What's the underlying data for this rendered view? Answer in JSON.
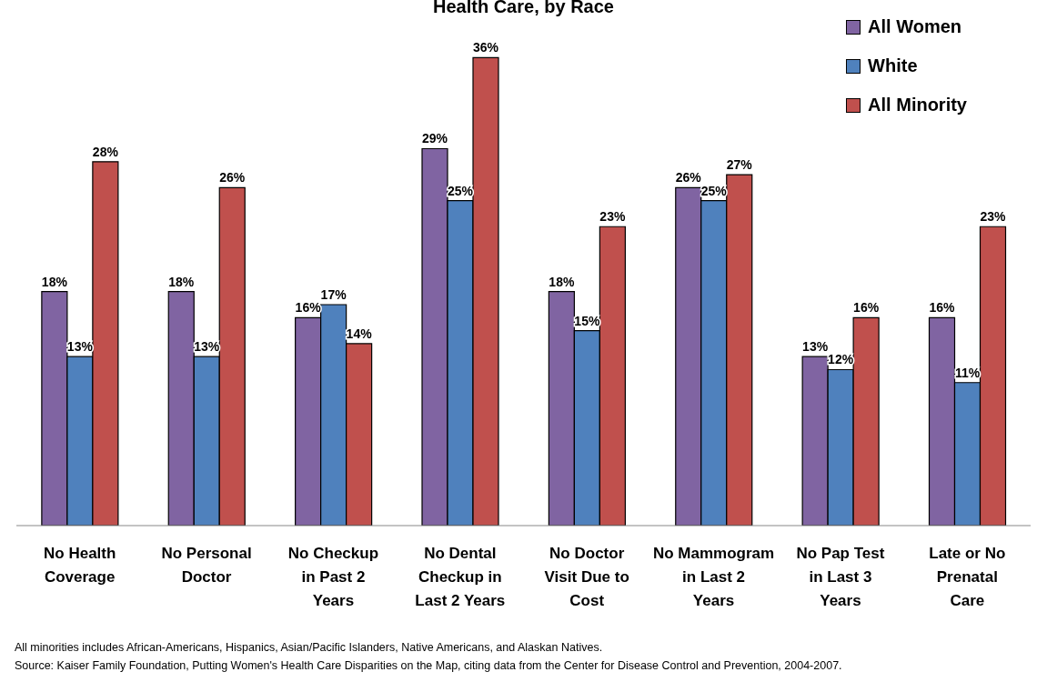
{
  "chart_data": {
    "type": "bar",
    "title": "Health Care, by Race",
    "categories": [
      "No Health Coverage",
      "No Personal Doctor",
      "No Checkup in Past 2 Years",
      "No Dental Checkup in Last 2 Years",
      "No Doctor Visit Due to Cost",
      "No Mammogram in Last 2 Years",
      "No Pap Test in Last 3 Years",
      "Late or No Prenatal Care"
    ],
    "series": [
      {
        "name": "All Women",
        "color": "#8064a2",
        "values": [
          18,
          18,
          16,
          29,
          18,
          26,
          13,
          16
        ],
        "value_labels": [
          "18%",
          "18%",
          "16%",
          "29%",
          "18%",
          "26%",
          "13%",
          "16%"
        ]
      },
      {
        "name": "White",
        "color": "#4f81bd",
        "values": [
          13,
          13,
          17,
          25,
          15,
          25,
          12,
          11
        ],
        "value_labels": [
          "13%",
          "13%",
          "17%",
          "25%",
          "15%",
          "25%",
          "12%",
          "11%"
        ]
      },
      {
        "name": "All Minority",
        "color": "#c0504d",
        "values": [
          28,
          26,
          14,
          36,
          23,
          27,
          16,
          23
        ],
        "value_labels": [
          "28%",
          "26%",
          "14%",
          "36%",
          "23%",
          "27%",
          "16%",
          "23%"
        ]
      }
    ],
    "legend": "top right",
    "grid": false,
    "annotations": [
      "All minorities includes African-Americans, Hispanics, Asian/Pacific Islanders, Native Americans, and Alaskan Natives.",
      "Source: Kaiser Family Foundation, Putting Women's Health Care Disparities on the Map, citing data from the Center for Disease Control and Prevention, 2004-2007."
    ]
  }
}
